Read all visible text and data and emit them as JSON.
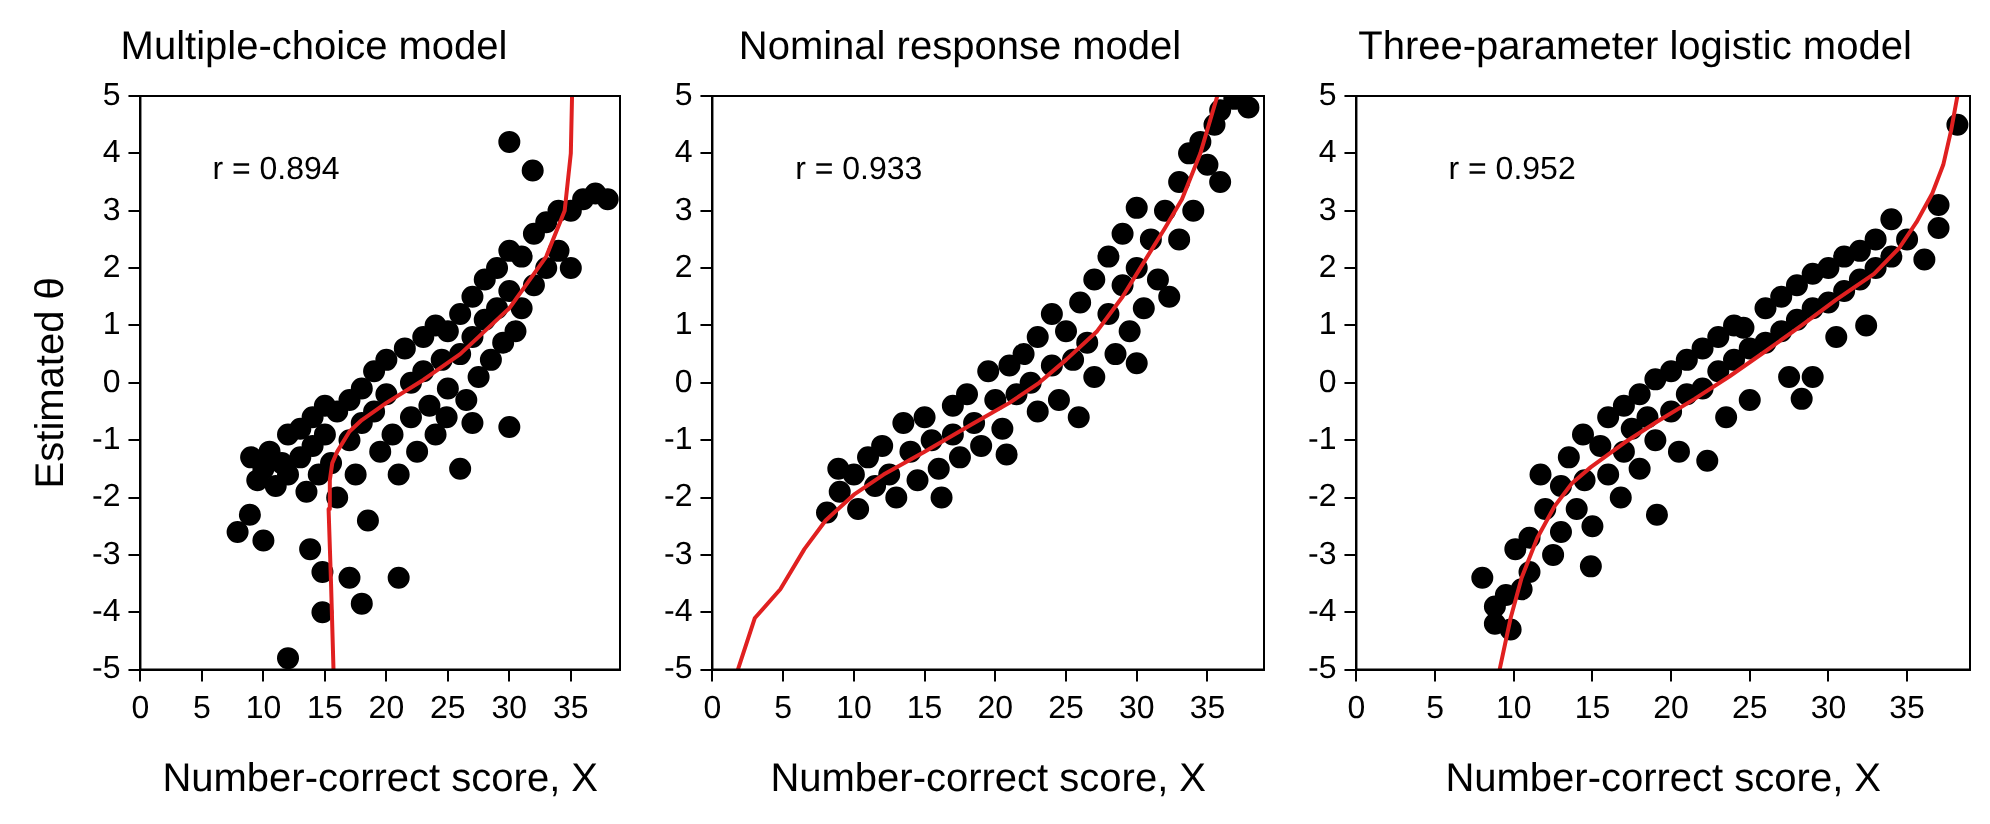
{
  "chart_data": [
    {
      "type": "scatter",
      "title": "Multiple-choice model",
      "xlabel": "Number-correct score, X",
      "ylabel": "Estimated θ",
      "annotations": [
        "r = 0.894"
      ],
      "xlim": [
        0,
        39
      ],
      "xticks": [
        0,
        5,
        10,
        15,
        20,
        25,
        30,
        35
      ],
      "ylim": [
        -5,
        5
      ],
      "yticks": [
        -5,
        -4,
        -3,
        -2,
        -1,
        0,
        1,
        2,
        3,
        4,
        5
      ],
      "grid": false,
      "legend": false,
      "marker": "circle",
      "series": [
        {
          "type": "scatter",
          "color": "#000000",
          "x": [
            30,
            31.9,
            7.9,
            8.9,
            10,
            12,
            14.8,
            18,
            21,
            14.8,
            13.8,
            17,
            30,
            27,
            24.9,
            26,
            9,
            9.5,
            10,
            10.5,
            11,
            11.5,
            12,
            12,
            13,
            13,
            13.5,
            14,
            14,
            14.5,
            15,
            15,
            15.5,
            16,
            16,
            17,
            17,
            17.5,
            18,
            18,
            18.5,
            19,
            19,
            19.5,
            20,
            20,
            20.5,
            21,
            21.5,
            22,
            22,
            22.5,
            23,
            23,
            23.5,
            24,
            24,
            24.5,
            25,
            25,
            26,
            26,
            26.5,
            27,
            27,
            27.5,
            28,
            28,
            28.5,
            29,
            29,
            29.5,
            30,
            30,
            30.5,
            31,
            31,
            32,
            32,
            33,
            33,
            34,
            34,
            35,
            35,
            36,
            37,
            38
          ],
          "values": [
            4.2,
            3.7,
            -2.6,
            -2.3,
            -2.75,
            -4.8,
            -4,
            -3.85,
            -3.4,
            -3.3,
            -2.9,
            -3.4,
            -0.77,
            -0.7,
            -0.6,
            -1.5,
            -1.3,
            -1.7,
            -1.5,
            -1.2,
            -1.8,
            -1.4,
            -0.9,
            -1.6,
            -0.8,
            -1.3,
            -1.9,
            -0.6,
            -1.1,
            -1.6,
            -0.4,
            -0.9,
            -1.4,
            -2,
            -0.5,
            -0.3,
            -1,
            -1.6,
            -0.1,
            -0.7,
            -2.4,
            0.2,
            -0.5,
            -1.2,
            0.4,
            -0.2,
            -0.9,
            -1.6,
            0.6,
            0,
            -0.6,
            -1.2,
            0.8,
            0.2,
            -0.4,
            1,
            -0.9,
            0.4,
            0.9,
            -0.1,
            1.2,
            0.5,
            -0.3,
            1.5,
            0.8,
            0.1,
            1.8,
            1.1,
            0.4,
            2,
            1.3,
            0.7,
            2.3,
            1.6,
            0.9,
            2.2,
            1.3,
            2.6,
            1.7,
            2.8,
            2,
            3,
            2.3,
            3,
            2,
            3.2,
            3.3,
            3.2
          ]
        },
        {
          "type": "line",
          "color": "#e02020",
          "marker": "none",
          "x": [
            15.7,
            15.5,
            15.3,
            15.4,
            15.6,
            16,
            17,
            18,
            20,
            23,
            26,
            30,
            33,
            34.5,
            35,
            35.1
          ],
          "values": [
            -5,
            -3.5,
            -2.2,
            -1.7,
            -1.4,
            -1.2,
            -0.85,
            -0.65,
            -0.35,
            0.05,
            0.5,
            1.3,
            2.2,
            3,
            4,
            5
          ]
        }
      ]
    },
    {
      "type": "scatter",
      "title": "Nominal response model",
      "xlabel": "Number-correct score, X",
      "annotations": [
        "r = 0.933"
      ],
      "xlim": [
        0,
        39
      ],
      "xticks": [
        0,
        5,
        10,
        15,
        20,
        25,
        30,
        35
      ],
      "ylim": [
        -5,
        5
      ],
      "yticks": [
        -5,
        -4,
        -3,
        -2,
        -1,
        0,
        1,
        2,
        3,
        4,
        5
      ],
      "grid": false,
      "legend": false,
      "marker": "circle",
      "series": [
        {
          "type": "scatter",
          "color": "#000000",
          "x": [
            8.1,
            8.9,
            9,
            10,
            10.3,
            11,
            11.5,
            12,
            12.5,
            13,
            13.5,
            14,
            14.5,
            15,
            15.5,
            16,
            16.2,
            17,
            17,
            17.5,
            18,
            18.5,
            19,
            19.5,
            20,
            20.5,
            20.8,
            21,
            21.5,
            22,
            22.5,
            23,
            23,
            24,
            24,
            24.5,
            25,
            25.5,
            25.9,
            26,
            26.5,
            27,
            27,
            28,
            28,
            28.5,
            29,
            29,
            29.5,
            30,
            30,
            30,
            30.5,
            31,
            31.5,
            32,
            32.3,
            33,
            33,
            33.7,
            34,
            34.5,
            35,
            35.5,
            35.9,
            35.9,
            36.9,
            37.9
          ],
          "values": [
            -2.26,
            -1.5,
            -1.9,
            -1.6,
            -2.2,
            -1.3,
            -1.8,
            -1.1,
            -1.6,
            -2,
            -0.7,
            -1.2,
            -1.7,
            -0.6,
            -1,
            -1.5,
            -2,
            -0.4,
            -0.9,
            -1.3,
            -0.2,
            -0.7,
            -1.1,
            0.2,
            -0.3,
            -0.8,
            -1.25,
            0.3,
            -0.2,
            0.5,
            0,
            -0.5,
            0.8,
            1.2,
            0.3,
            -0.3,
            0.9,
            0.4,
            -0.6,
            1.4,
            0.7,
            0.1,
            1.8,
            1.2,
            2.2,
            0.5,
            1.7,
            2.6,
            0.9,
            3.05,
            2,
            0.34,
            1.3,
            2.5,
            1.8,
            3,
            1.5,
            3.5,
            2.5,
            4,
            3,
            4.2,
            3.8,
            4.5,
            3.5,
            4.75,
            4.95,
            4.8
          ]
        },
        {
          "type": "line",
          "color": "#e02020",
          "marker": "none",
          "x": [
            1.8,
            3,
            4.8,
            6.5,
            8,
            10,
            12.1,
            15,
            18.5,
            21,
            23.1,
            25,
            27.2,
            29,
            30.5,
            32,
            33.2,
            34.5,
            35.7
          ],
          "values": [
            -5,
            -4.1,
            -3.6,
            -2.9,
            -2.4,
            -1.95,
            -1.6,
            -1.2,
            -0.7,
            -0.35,
            0,
            0.4,
            0.9,
            1.5,
            2.1,
            2.7,
            3.2,
            4,
            5
          ]
        }
      ]
    },
    {
      "type": "scatter",
      "title": "Three-parameter logistic model",
      "xlabel": "Number-correct score, X",
      "annotations": [
        "r = 0.952"
      ],
      "xlim": [
        0,
        39
      ],
      "xticks": [
        0,
        5,
        10,
        15,
        20,
        25,
        30,
        35
      ],
      "ylim": [
        -5,
        5
      ],
      "yticks": [
        -5,
        -4,
        -3,
        -2,
        -1,
        0,
        1,
        2,
        3,
        4,
        5
      ],
      "grid": false,
      "legend": false,
      "marker": "circle",
      "series": [
        {
          "type": "scatter",
          "color": "#000000",
          "x": [
            8,
            8.8,
            8.8,
            9.8,
            9.5,
            10.1,
            10.5,
            11,
            11,
            11.7,
            12,
            12.5,
            13,
            13,
            13.5,
            14,
            14.4,
            14.5,
            14.9,
            15,
            15.5,
            16,
            16,
            16.8,
            17,
            17,
            17.5,
            18,
            18,
            18.5,
            19,
            19,
            19.1,
            20,
            20,
            20.5,
            21,
            21,
            22,
            22,
            22.3,
            23,
            23,
            23.5,
            24,
            24,
            24.6,
            25,
            25,
            26,
            26,
            27,
            27,
            27.5,
            28,
            28,
            28.3,
            29,
            29,
            29,
            30,
            30,
            30.5,
            31,
            31,
            32,
            32.4,
            32,
            33,
            33,
            34,
            34,
            35,
            36.1,
            37,
            37,
            38.2
          ],
          "values": [
            -3.4,
            -3.9,
            -4.2,
            -4.3,
            -3.7,
            -2.9,
            -3.6,
            -2.7,
            -3.3,
            -1.6,
            -2.2,
            -3,
            -1.8,
            -2.6,
            -1.3,
            -2.2,
            -0.9,
            -1.7,
            -3.2,
            -2.5,
            -1.1,
            -0.6,
            -1.6,
            -2,
            -0.4,
            -1.2,
            -0.8,
            -0.2,
            -1.5,
            -0.6,
            0.06,
            -1,
            -2.3,
            0.2,
            -0.5,
            -1.2,
            0.4,
            -0.2,
            0.6,
            -0.1,
            -1.36,
            0.8,
            0.2,
            -0.6,
            1,
            0.4,
            0.96,
            0.6,
            -0.3,
            1.3,
            0.7,
            1.5,
            0.9,
            0.1,
            1.7,
            1.1,
            -0.28,
            0.1,
            1.9,
            1.3,
            2,
            1.4,
            0.8,
            2.2,
            1.6,
            2.3,
            1,
            1.8,
            2.5,
            2,
            2.85,
            2.2,
            2.5,
            2.15,
            3.1,
            2.7,
            4.5
          ]
        },
        {
          "type": "line",
          "color": "#e02020",
          "marker": "none",
          "x": [
            9.1,
            9.8,
            10.5,
            11.5,
            12.6,
            13.7,
            14.9,
            17,
            19.1,
            21.5,
            23.7,
            26,
            28.3,
            30.5,
            32.9,
            34.5,
            35.6,
            36.6,
            37.3,
            37.8,
            38.2
          ],
          "values": [
            -5,
            -4.1,
            -3.4,
            -2.7,
            -2.15,
            -1.75,
            -1.47,
            -1.05,
            -0.68,
            -0.28,
            0.11,
            0.55,
            1,
            1.45,
            1.9,
            2.35,
            2.8,
            3.3,
            3.8,
            4.4,
            5
          ]
        }
      ]
    }
  ]
}
